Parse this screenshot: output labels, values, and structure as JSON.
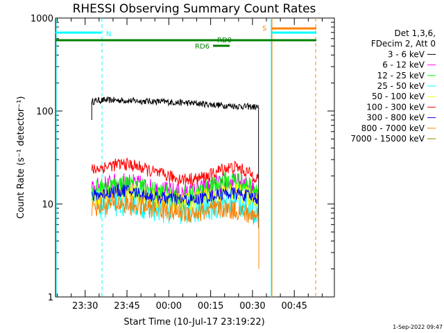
{
  "chart_data": {
    "type": "line",
    "title": "RHESSI Observing Summary Count Rates",
    "xlabel": "Start Time (10-Jul-17 23:19:22)",
    "ylabel": "Count Rate (s⁻¹ detector⁻¹)",
    "yscale": "log",
    "ylim": [
      1,
      1000
    ],
    "xlim_minutes_from_start": [
      0,
      100
    ],
    "x_tick_labels": [
      "23:30",
      "23:45",
      "00:00",
      "00:15",
      "00:30",
      "00:45"
    ],
    "x_tick_minutes": [
      10.63,
      25.63,
      40.63,
      55.63,
      70.63,
      85.63
    ],
    "y_tick_labels": [
      "1",
      "10",
      "100",
      "1000"
    ],
    "y_tick_values": [
      1,
      10,
      100,
      1000
    ],
    "grid": false,
    "legend_position": "right",
    "legend_header": [
      "Det 1,3,6,",
      "FDecim 2, Att 0"
    ],
    "series": [
      {
        "name": "3 - 6 keV",
        "color": "#000000",
        "x": [
          13,
          15,
          20,
          25,
          30,
          35,
          40,
          45,
          50,
          55,
          60,
          65,
          70,
          72.8
        ],
        "y": [
          125,
          130,
          131,
          130,
          128,
          127,
          125,
          123,
          121,
          118,
          115,
          113,
          111,
          110
        ]
      },
      {
        "name": "6 - 12 keV",
        "color": "#ff00ff",
        "x": [
          13,
          15,
          20,
          25,
          30,
          35,
          40,
          45,
          50,
          55,
          60,
          65,
          70,
          72.8
        ],
        "y": [
          14,
          15,
          16.5,
          17,
          16,
          14.5,
          13.5,
          13,
          13.5,
          15,
          16.5,
          17,
          15,
          14
        ]
      },
      {
        "name": "12 - 25 keV",
        "color": "#00ff00",
        "x": [
          13,
          15,
          20,
          25,
          30,
          35,
          40,
          45,
          50,
          55,
          60,
          65,
          70,
          72.8
        ],
        "y": [
          13,
          14,
          15.5,
          16,
          15,
          13.5,
          12.5,
          12,
          12.5,
          14.5,
          17,
          17.5,
          15,
          14
        ]
      },
      {
        "name": "25 - 50 keV",
        "color": "#00ffff",
        "x": [
          13,
          15,
          20,
          25,
          30,
          35,
          40,
          45,
          50,
          55,
          60,
          65,
          70,
          72.8
        ],
        "y": [
          9.5,
          10,
          10.5,
          11,
          10.5,
          9.5,
          9,
          8.5,
          9,
          9.5,
          10.5,
          10.5,
          9.5,
          9
        ]
      },
      {
        "name": "50 - 100 keV",
        "color": "#ffff00",
        "x": [
          13,
          15,
          20,
          25,
          30,
          35,
          40,
          45,
          50,
          55,
          60,
          65,
          70,
          72.8
        ],
        "y": [
          11,
          12,
          13,
          13.5,
          12.5,
          11.5,
          11,
          10.5,
          11,
          12,
          13,
          13.5,
          12,
          11.5
        ]
      },
      {
        "name": "100 - 300 keV",
        "color": "#ff0000",
        "x": [
          13,
          15,
          20,
          25,
          30,
          35,
          40,
          45,
          50,
          55,
          60,
          65,
          70,
          72.8
        ],
        "y": [
          23,
          24,
          26,
          27,
          25,
          22,
          20,
          18.5,
          18.5,
          20,
          24,
          25,
          21,
          19
        ]
      },
      {
        "name": "300 - 800 keV",
        "color": "#0000ff",
        "x": [
          13,
          15,
          20,
          25,
          30,
          35,
          40,
          45,
          50,
          55,
          60,
          65,
          70,
          72.8
        ],
        "y": [
          12,
          12.5,
          13.5,
          14,
          13,
          12,
          11.5,
          11,
          11,
          12,
          13,
          13,
          12,
          11.5
        ]
      },
      {
        "name": "800 - 7000 keV",
        "color": "#ff8000",
        "x": [
          13,
          15,
          20,
          25,
          30,
          35,
          40,
          45,
          50,
          55,
          60,
          65,
          70,
          72.8
        ],
        "y": [
          9,
          9.5,
          10,
          10,
          9.5,
          9,
          8.5,
          8,
          8,
          8.5,
          9,
          8.5,
          7.5,
          7.5
        ]
      },
      {
        "name": "7000 - 15000 keV",
        "color": "#9b8000",
        "x": [],
        "y": []
      }
    ],
    "annotations": {
      "attenuator_flags": [
        {
          "label": "RD0",
          "color": "#008000"
        },
        {
          "label": "RD6",
          "color": "#008000"
        },
        {
          "label": "N",
          "color": "#00ffff"
        },
        {
          "label": "S",
          "color": "#ff8000"
        }
      ]
    }
  },
  "footer": {
    "timestamp": "1-Sep-2022 09:47"
  }
}
